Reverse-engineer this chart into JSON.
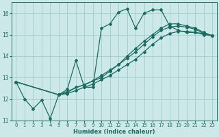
{
  "xlabel": "Humidex (Indice chaleur)",
  "ylabel": "",
  "bg_color": "#cce8e8",
  "grid_color": "#a0cccc",
  "line_color": "#1a6b60",
  "marker_color": "#1a6b60",
  "xlim": [
    -0.5,
    23.5
  ],
  "ylim": [
    11,
    16.5
  ],
  "yticks": [
    11,
    12,
    13,
    14,
    15,
    16
  ],
  "xticks": [
    0,
    1,
    2,
    3,
    4,
    5,
    6,
    7,
    8,
    9,
    10,
    11,
    12,
    13,
    14,
    15,
    16,
    17,
    18,
    19,
    20,
    21,
    22,
    23
  ],
  "lines": [
    {
      "x": [
        0,
        1,
        2,
        3,
        4,
        5,
        6,
        7,
        8,
        9,
        10,
        11,
        12,
        13,
        14,
        15,
        16,
        17,
        18,
        19,
        20,
        21,
        22,
        23
      ],
      "y": [
        12.8,
        12.0,
        11.55,
        11.95,
        11.1,
        12.2,
        12.45,
        13.8,
        12.55,
        12.55,
        15.3,
        15.5,
        16.05,
        16.2,
        15.3,
        16.0,
        16.15,
        16.15,
        15.4,
        15.2,
        15.1,
        15.1,
        15.05,
        14.95
      ]
    },
    {
      "x": [
        0,
        5,
        10,
        11,
        12,
        13,
        14,
        15,
        16,
        17,
        18,
        19,
        20,
        21,
        22,
        23
      ],
      "y": [
        12.8,
        12.2,
        13.0,
        13.3,
        13.6,
        14.0,
        14.35,
        14.7,
        15.0,
        15.3,
        15.5,
        15.5,
        15.4,
        15.3,
        15.1,
        14.95
      ]
    },
    {
      "x": [
        0,
        5,
        6,
        7,
        8,
        9,
        10,
        11,
        12,
        13,
        14,
        15,
        16,
        17,
        18,
        19,
        20,
        21,
        22,
        23
      ],
      "y": [
        12.8,
        12.2,
        12.3,
        12.55,
        12.65,
        12.85,
        13.1,
        13.35,
        13.6,
        13.9,
        14.2,
        14.55,
        14.9,
        15.2,
        15.35,
        15.4,
        15.35,
        15.25,
        15.05,
        14.95
      ]
    },
    {
      "x": [
        0,
        5,
        6,
        7,
        8,
        9,
        10,
        11,
        12,
        13,
        14,
        15,
        16,
        17,
        18,
        19,
        20,
        21,
        22,
        23
      ],
      "y": [
        12.8,
        12.2,
        12.25,
        12.4,
        12.55,
        12.7,
        12.9,
        13.1,
        13.35,
        13.6,
        13.85,
        14.2,
        14.55,
        14.85,
        15.05,
        15.15,
        15.15,
        15.1,
        15.0,
        14.95
      ]
    }
  ]
}
